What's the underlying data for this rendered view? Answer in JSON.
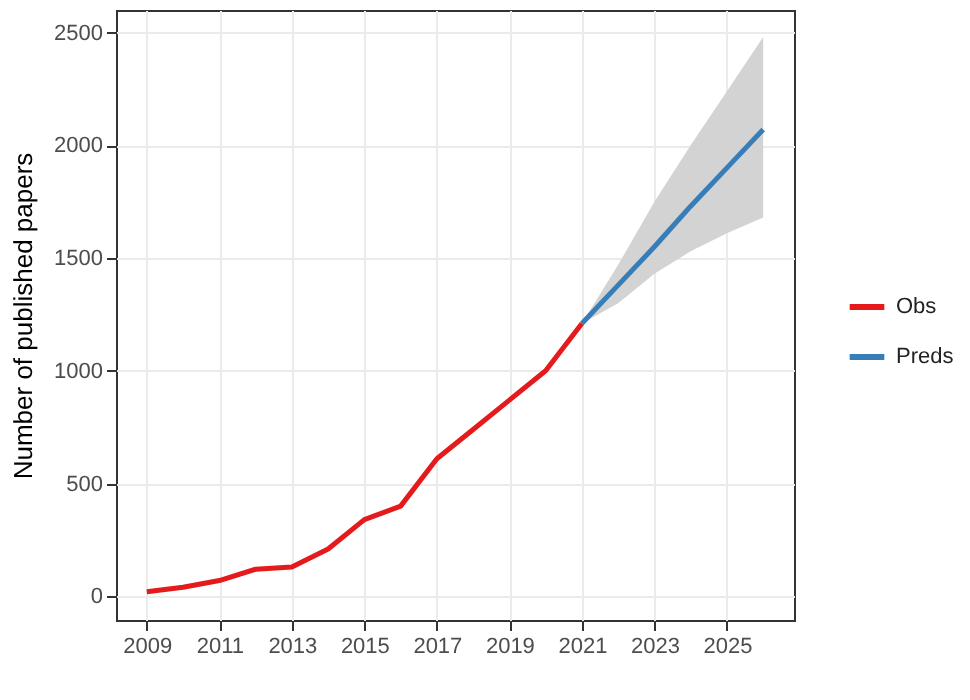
{
  "chart_data": {
    "type": "line",
    "ylabel": "Number of published papers",
    "xlim": [
      2008.15,
      2026.85
    ],
    "xticks": [
      2009,
      2011,
      2013,
      2015,
      2017,
      2019,
      2021,
      2023,
      2025
    ],
    "ylim": [
      -105,
      2600
    ],
    "yticks": [
      0,
      500,
      1000,
      1500,
      2000,
      2500
    ],
    "grid": true,
    "legend": "right",
    "line_style": "solid",
    "series": [
      {
        "name": "Obs",
        "color": "#e41a1c",
        "x": [
          2009,
          2010,
          2011,
          2012,
          2013,
          2014,
          2015,
          2016,
          2017,
          2018,
          2019,
          2020,
          2021
        ],
        "values": [
          20,
          40,
          70,
          120,
          130,
          210,
          340,
          400,
          610,
          740,
          870,
          1000,
          1210
        ]
      },
      {
        "name": "Preds",
        "color": "#377eb8",
        "x": [
          2021,
          2022,
          2023,
          2024,
          2025,
          2026
        ],
        "values": [
          1210,
          1380,
          1550,
          1730,
          1900,
          2070
        ],
        "lower": [
          1210,
          1300,
          1430,
          1530,
          1610,
          1680
        ],
        "upper": [
          1210,
          1470,
          1750,
          2000,
          2240,
          2480
        ]
      }
    ]
  }
}
